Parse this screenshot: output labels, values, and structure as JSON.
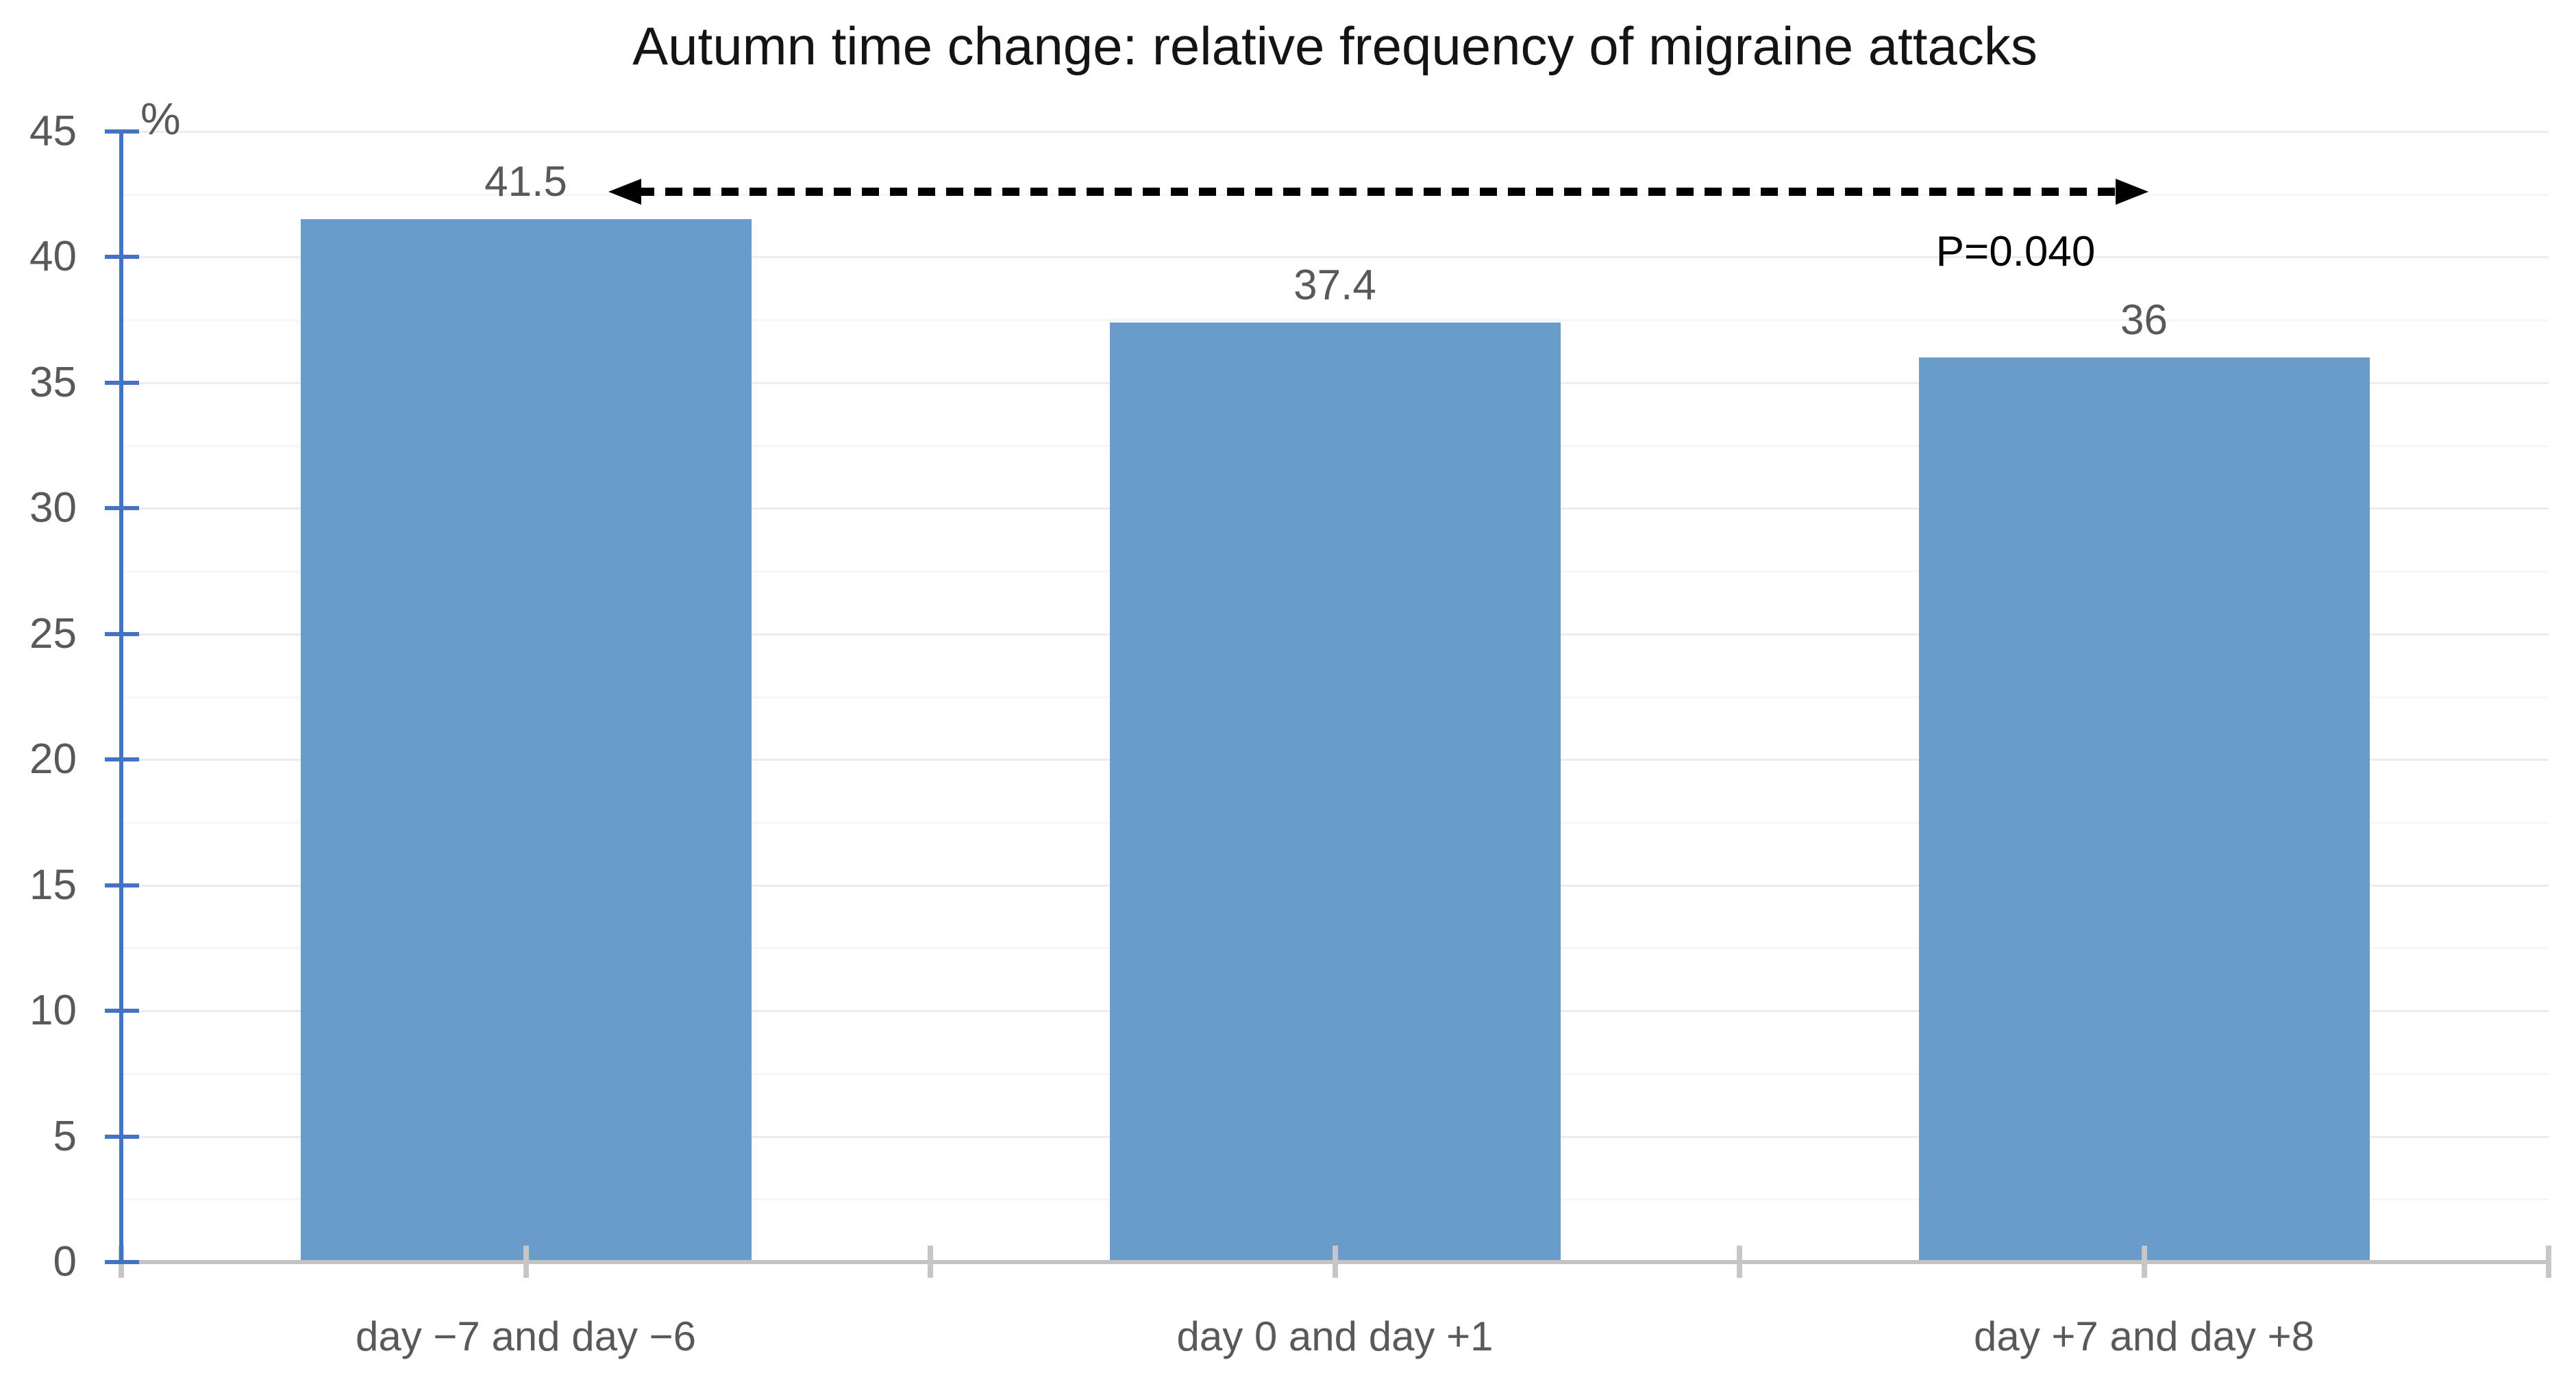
{
  "chart_data": {
    "type": "bar",
    "title": "Autumn time change: relative frequency of migraine attacks",
    "unit_label": "%",
    "categories": [
      "day −7 and day −6",
      "day 0 and day +1",
      "day +7 and day +8"
    ],
    "values": [
      41.5,
      37.4,
      36
    ],
    "value_labels": [
      "41.5",
      "37.4",
      "36"
    ],
    "ylim": [
      0,
      45
    ],
    "ytick_step": 5,
    "yminor_step": 2.5,
    "grid": "major and faint minor horizontal gridlines",
    "legend": "none",
    "bar_color": "#6a9ccb",
    "axis_color": "#4472c4",
    "label_color": "#595959",
    "baseline_color": "#c3c3c3",
    "annotation": {
      "p_label": "P=0.040",
      "arrow": "black dashed double-headed horizontal arrow from first bar to third bar"
    }
  }
}
